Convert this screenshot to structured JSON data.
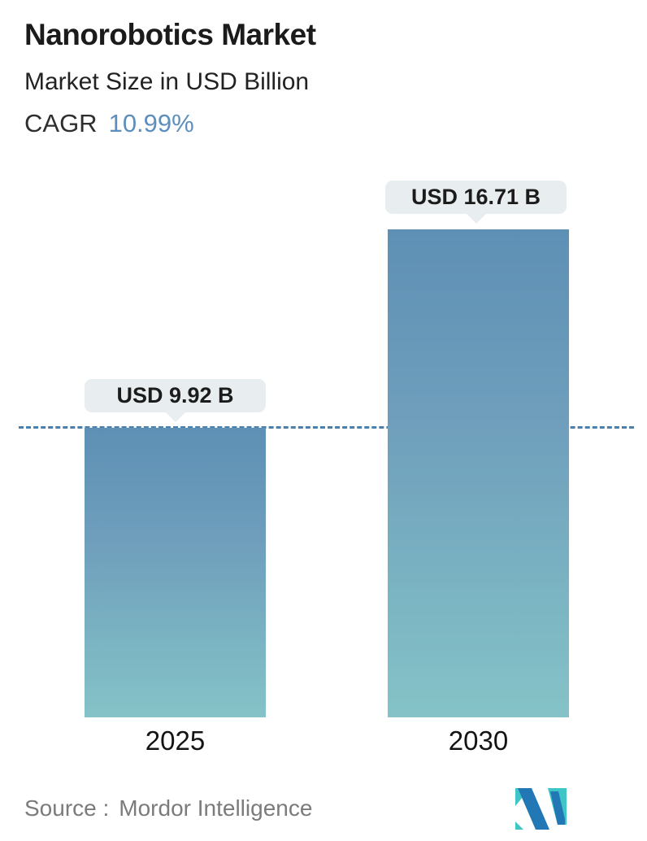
{
  "header": {
    "title": "Nanorobotics Market",
    "subtitle": "Market Size in USD Billion",
    "cagr_label": "CAGR",
    "cagr_value": "10.99%"
  },
  "chart_data": {
    "type": "bar",
    "categories": [
      "2025",
      "2030"
    ],
    "values": [
      9.92,
      16.71
    ],
    "value_labels": [
      "USD 9.92 B",
      "USD 16.71 B"
    ],
    "unit": "USD Billion",
    "title": "Nanorobotics Market",
    "ylabel": "Market Size in USD Billion",
    "ylim": [
      0,
      16.71
    ],
    "reference_line": {
      "value": 9.92,
      "style": "dashed",
      "note": "horizontal dashed line at 2025 bar top"
    },
    "legend": "none",
    "grid": "off"
  },
  "footer": {
    "source_label": "Source :",
    "source_value": "Mordor Intelligence",
    "logo_name": "mordor-intelligence-logo"
  },
  "colors": {
    "cagr_accent_blue": "#5d8fbc",
    "bar_gradient_top": "#5e90b5",
    "bar_gradient_bottom": "#84c3c7",
    "badge_background": "#e8eef0",
    "dashed_line": "#4a80ad",
    "source_text": "#7b7b7b",
    "logo_teal": "#3ec6c6",
    "logo_blue": "#2277b5",
    "text_dark": "#1b1b1b"
  }
}
